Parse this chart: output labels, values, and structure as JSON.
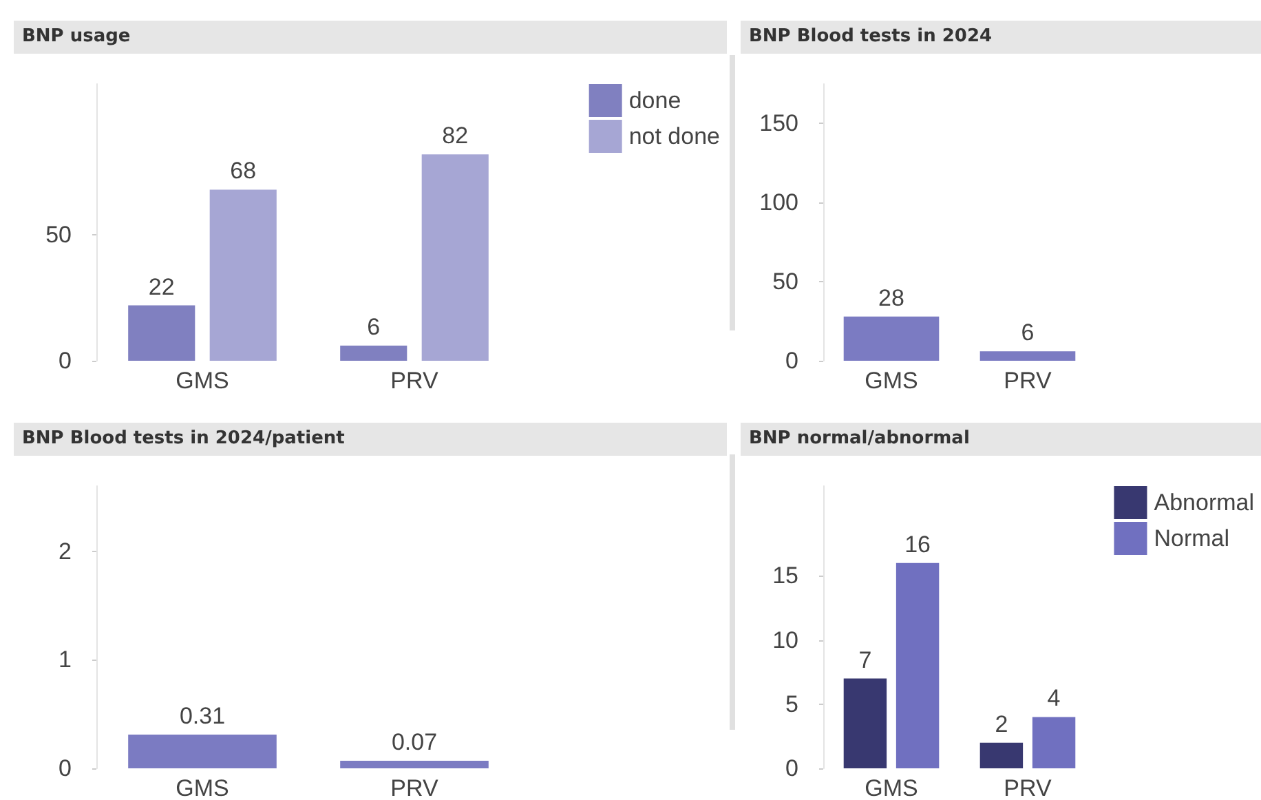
{
  "chart_data": [
    {
      "type": "bar",
      "title": "BNP usage",
      "categories": [
        "GMS",
        "PRV"
      ],
      "series": [
        {
          "name": "done",
          "color": "#8080c0",
          "values": [
            22,
            6
          ]
        },
        {
          "name": "not done",
          "color": "#a6a6d4",
          "values": [
            68,
            82
          ]
        }
      ],
      "ylim": [
        0,
        110
      ],
      "yticks": [
        0,
        50
      ],
      "grid": false,
      "legend": "top right",
      "data_labels": true
    },
    {
      "type": "bar",
      "title": "BNP Blood tests in 2024",
      "categories": [
        "GMS",
        "PRV"
      ],
      "values": [
        28,
        6
      ],
      "color": "#7b7bc2",
      "ylim": [
        0,
        175
      ],
      "yticks": [
        0,
        50,
        100,
        150
      ],
      "grid": false,
      "data_labels": true
    },
    {
      "type": "bar",
      "title": "BNP Blood tests in 2024/patient",
      "categories": [
        "GMS",
        "PRV"
      ],
      "values": [
        0.31,
        0.07
      ],
      "color": "#7b7bc2",
      "ylim": [
        0,
        2.6
      ],
      "yticks": [
        0,
        1,
        2
      ],
      "grid": false,
      "data_labels": true
    },
    {
      "type": "bar",
      "title": "BNP normal/abnormal",
      "categories": [
        "GMS",
        "PRV"
      ],
      "series": [
        {
          "name": "Abnormal",
          "color": "#383870",
          "values": [
            7,
            2
          ]
        },
        {
          "name": "Normal",
          "color": "#7070c0",
          "values": [
            16,
            4
          ]
        }
      ],
      "ylim": [
        0,
        22
      ],
      "yticks": [
        0,
        5,
        10,
        15
      ],
      "grid": false,
      "legend": "top right",
      "data_labels": true
    }
  ]
}
